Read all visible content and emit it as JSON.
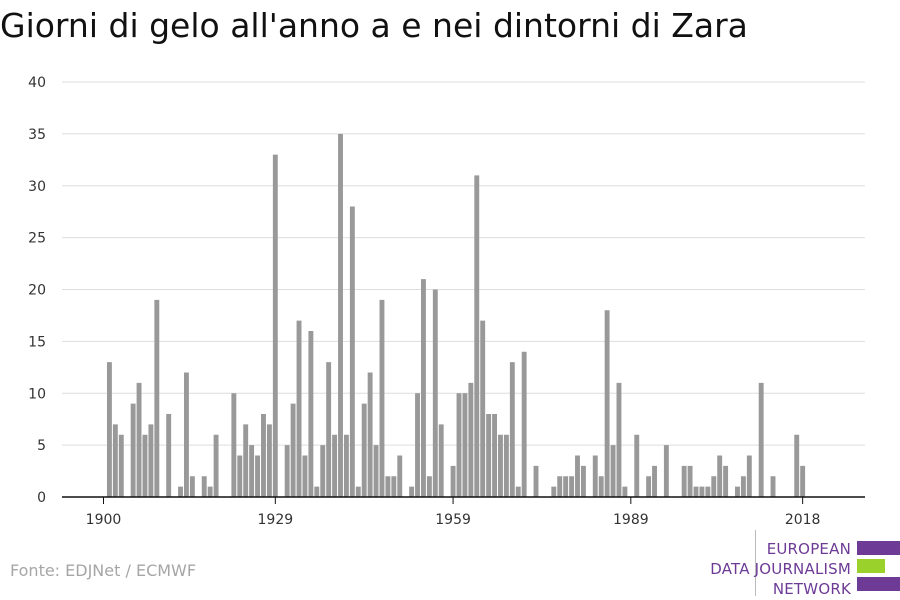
{
  "title": "Giorni di gelo all'anno a e nei dintorni di Zara",
  "source": "Fonte: EDJNet / ECMWF",
  "logo": {
    "lines": [
      "EUROPEAN",
      "DATA JOURNALISM",
      "NETWORK"
    ],
    "colors": {
      "purple": "#6d3b96",
      "green": "#9ad12b"
    }
  },
  "chart_data": {
    "type": "bar",
    "title": "Giorni di gelo all'anno a e nei dintorni di Zara",
    "xlabel": "",
    "ylabel": "",
    "xticks": [
      1900,
      1929,
      1959,
      1989,
      2018
    ],
    "yticks": [
      0,
      5,
      10,
      15,
      20,
      25,
      30,
      35,
      40
    ],
    "ylim": [
      0,
      40
    ],
    "grid": true,
    "bar_color": "#999999",
    "x": [
      1900,
      1901,
      1902,
      1903,
      1904,
      1905,
      1906,
      1907,
      1908,
      1909,
      1910,
      1911,
      1912,
      1913,
      1914,
      1915,
      1916,
      1917,
      1918,
      1919,
      1920,
      1921,
      1922,
      1923,
      1924,
      1925,
      1926,
      1927,
      1928,
      1929,
      1930,
      1931,
      1932,
      1933,
      1934,
      1935,
      1936,
      1937,
      1938,
      1939,
      1940,
      1941,
      1942,
      1943,
      1944,
      1945,
      1946,
      1947,
      1948,
      1949,
      1950,
      1951,
      1952,
      1953,
      1954,
      1955,
      1956,
      1957,
      1958,
      1959,
      1960,
      1961,
      1962,
      1963,
      1964,
      1965,
      1966,
      1967,
      1968,
      1969,
      1970,
      1971,
      1972,
      1973,
      1974,
      1975,
      1976,
      1977,
      1978,
      1979,
      1980,
      1981,
      1982,
      1983,
      1984,
      1985,
      1986,
      1987,
      1988,
      1989,
      1990,
      1991,
      1992,
      1993,
      1994,
      1995,
      1996,
      1997,
      1998,
      1999,
      2000,
      2001,
      2002,
      2003,
      2004,
      2005,
      2006,
      2007,
      2008,
      2009,
      2010,
      2011,
      2012,
      2013,
      2014,
      2015,
      2016,
      2017,
      2018,
      2019
    ],
    "values": [
      0,
      13,
      7,
      6,
      0,
      9,
      11,
      6,
      7,
      19,
      0,
      8,
      0,
      1,
      12,
      2,
      0,
      2,
      1,
      6,
      0,
      0,
      10,
      4,
      7,
      5,
      4,
      8,
      7,
      33,
      0,
      5,
      9,
      17,
      4,
      16,
      1,
      5,
      13,
      6,
      35,
      6,
      28,
      1,
      9,
      12,
      5,
      19,
      2,
      2,
      4,
      0,
      1,
      10,
      21,
      2,
      20,
      7,
      0,
      3,
      10,
      10,
      11,
      31,
      17,
      8,
      8,
      6,
      6,
      13,
      1,
      14,
      0,
      3,
      0,
      0,
      1,
      2,
      2,
      2,
      4,
      3,
      0,
      4,
      2,
      18,
      5,
      11,
      1,
      0,
      6,
      0,
      2,
      3,
      0,
      5,
      0,
      0,
      3,
      3,
      1,
      1,
      1,
      2,
      4,
      3,
      0,
      1,
      2,
      4,
      0,
      11,
      0,
      2,
      0,
      0,
      0,
      6,
      3,
      0
    ]
  }
}
